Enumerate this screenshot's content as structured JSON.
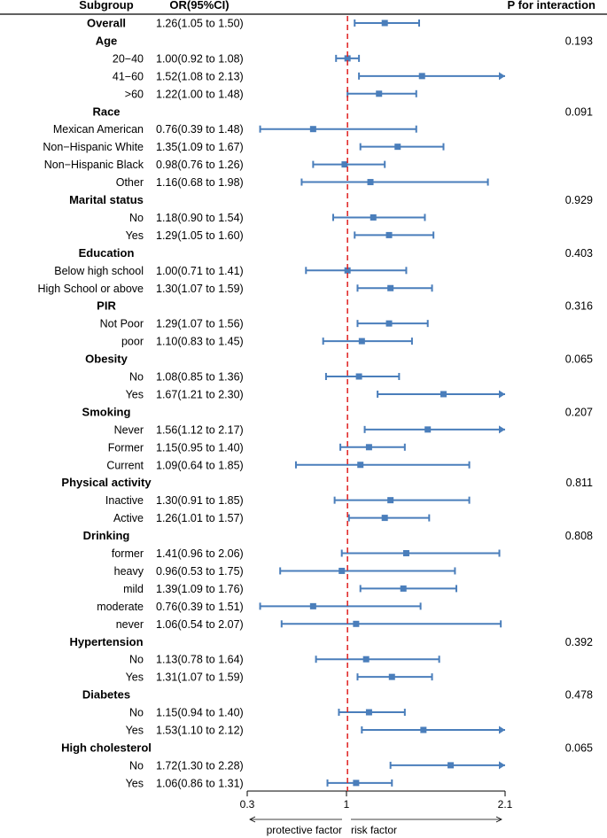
{
  "chart_data": {
    "type": "forest",
    "headers": {
      "subgroup": "Subgroup",
      "or": "OR(95%CI)",
      "p": "P for interaction"
    },
    "x_axis": {
      "min": 0.3,
      "max": 2.1,
      "ref": 1,
      "ticks": [
        "0.3",
        "1",
        "2.1"
      ]
    },
    "annotations": {
      "left": "protective factor",
      "right": "risk factor"
    },
    "colors": {
      "estimate": "#4a7ebb",
      "reference": "#e02020",
      "text": "#000000"
    },
    "rows": [
      {
        "label": "Overall",
        "header": true,
        "or_text": "1.26(1.05 to 1.50)",
        "est": 1.26,
        "lo": 1.05,
        "hi": 1.5,
        "p": ""
      },
      {
        "label": "Age",
        "header": true,
        "or_text": "",
        "p": "0.193"
      },
      {
        "label": "20−40",
        "header": false,
        "or_text": "1.00(0.92 to 1.08)",
        "est": 1.0,
        "lo": 0.92,
        "hi": 1.08,
        "p": ""
      },
      {
        "label": "41−60",
        "header": false,
        "or_text": "1.52(1.08 to 2.13)",
        "est": 1.52,
        "lo": 1.08,
        "hi": 2.13,
        "p": ""
      },
      {
        "label": ">60",
        "header": false,
        "or_text": "1.22(1.00 to 1.48)",
        "est": 1.22,
        "lo": 1.0,
        "hi": 1.48,
        "p": ""
      },
      {
        "label": "Race",
        "header": true,
        "or_text": "",
        "p": "0.091"
      },
      {
        "label": "Mexican American",
        "header": false,
        "or_text": "0.76(0.39 to 1.48)",
        "est": 0.76,
        "lo": 0.39,
        "hi": 1.48,
        "p": ""
      },
      {
        "label": "Non−Hispanic White",
        "header": false,
        "or_text": "1.35(1.09 to 1.67)",
        "est": 1.35,
        "lo": 1.09,
        "hi": 1.67,
        "p": ""
      },
      {
        "label": "Non−Hispanic Black",
        "header": false,
        "or_text": "0.98(0.76 to 1.26)",
        "est": 0.98,
        "lo": 0.76,
        "hi": 1.26,
        "p": ""
      },
      {
        "label": "Other",
        "header": false,
        "or_text": "1.16(0.68 to 1.98)",
        "est": 1.16,
        "lo": 0.68,
        "hi": 1.98,
        "p": ""
      },
      {
        "label": "Marital status",
        "header": true,
        "or_text": "",
        "p": "0.929"
      },
      {
        "label": "No",
        "header": false,
        "or_text": "1.18(0.90 to 1.54)",
        "est": 1.18,
        "lo": 0.9,
        "hi": 1.54,
        "p": ""
      },
      {
        "label": "Yes",
        "header": false,
        "or_text": "1.29(1.05 to 1.60)",
        "est": 1.29,
        "lo": 1.05,
        "hi": 1.6,
        "p": ""
      },
      {
        "label": "Education",
        "header": true,
        "or_text": "",
        "p": "0.403"
      },
      {
        "label": "Below high school",
        "header": false,
        "or_text": "1.00(0.71 to 1.41)",
        "est": 1.0,
        "lo": 0.71,
        "hi": 1.41,
        "p": ""
      },
      {
        "label": "High School or above",
        "header": false,
        "or_text": "1.30(1.07 to 1.59)",
        "est": 1.3,
        "lo": 1.07,
        "hi": 1.59,
        "p": ""
      },
      {
        "label": "PIR",
        "header": true,
        "or_text": "",
        "p": "0.316"
      },
      {
        "label": "Not Poor",
        "header": false,
        "or_text": "1.29(1.07 to 1.56)",
        "est": 1.29,
        "lo": 1.07,
        "hi": 1.56,
        "p": ""
      },
      {
        "label": "poor",
        "header": false,
        "or_text": "1.10(0.83 to 1.45)",
        "est": 1.1,
        "lo": 0.83,
        "hi": 1.45,
        "p": ""
      },
      {
        "label": "Obesity",
        "header": true,
        "or_text": "",
        "p": "0.065"
      },
      {
        "label": "No",
        "header": false,
        "or_text": "1.08(0.85 to 1.36)",
        "est": 1.08,
        "lo": 0.85,
        "hi": 1.36,
        "p": ""
      },
      {
        "label": "Yes",
        "header": false,
        "or_text": "1.67(1.21 to 2.30)",
        "est": 1.67,
        "lo": 1.21,
        "hi": 2.3,
        "p": ""
      },
      {
        "label": "Smoking",
        "header": true,
        "or_text": "",
        "p": "0.207"
      },
      {
        "label": "Never",
        "header": false,
        "or_text": "1.56(1.12 to 2.17)",
        "est": 1.56,
        "lo": 1.12,
        "hi": 2.17,
        "p": ""
      },
      {
        "label": "Former",
        "header": false,
        "or_text": "1.15(0.95 to 1.40)",
        "est": 1.15,
        "lo": 0.95,
        "hi": 1.4,
        "p": ""
      },
      {
        "label": "Current",
        "header": false,
        "or_text": "1.09(0.64 to 1.85)",
        "est": 1.09,
        "lo": 0.64,
        "hi": 1.85,
        "p": ""
      },
      {
        "label": "Physical activity",
        "header": true,
        "or_text": "",
        "p": "0.811"
      },
      {
        "label": "Inactive",
        "header": false,
        "or_text": "1.30(0.91 to 1.85)",
        "est": 1.3,
        "lo": 0.91,
        "hi": 1.85,
        "p": ""
      },
      {
        "label": "Active",
        "header": false,
        "or_text": "1.26(1.01 to 1.57)",
        "est": 1.26,
        "lo": 1.01,
        "hi": 1.57,
        "p": ""
      },
      {
        "label": "Drinking",
        "header": true,
        "or_text": "",
        "p": "0.808"
      },
      {
        "label": "former",
        "header": false,
        "or_text": "1.41(0.96 to 2.06)",
        "est": 1.41,
        "lo": 0.96,
        "hi": 2.06,
        "p": ""
      },
      {
        "label": "heavy",
        "header": false,
        "or_text": "0.96(0.53 to 1.75)",
        "est": 0.96,
        "lo": 0.53,
        "hi": 1.75,
        "p": ""
      },
      {
        "label": "mild",
        "header": false,
        "or_text": "1.39(1.09 to 1.76)",
        "est": 1.39,
        "lo": 1.09,
        "hi": 1.76,
        "p": ""
      },
      {
        "label": "moderate",
        "header": false,
        "or_text": "0.76(0.39 to 1.51)",
        "est": 0.76,
        "lo": 0.39,
        "hi": 1.51,
        "p": ""
      },
      {
        "label": "never",
        "header": false,
        "or_text": "1.06(0.54 to 2.07)",
        "est": 1.06,
        "lo": 0.54,
        "hi": 2.07,
        "p": ""
      },
      {
        "label": "Hypertension",
        "header": true,
        "or_text": "",
        "p": "0.392"
      },
      {
        "label": "No",
        "header": false,
        "or_text": "1.13(0.78 to 1.64)",
        "est": 1.13,
        "lo": 0.78,
        "hi": 1.64,
        "p": ""
      },
      {
        "label": "Yes",
        "header": false,
        "or_text": "1.31(1.07 to 1.59)",
        "est": 1.31,
        "lo": 1.07,
        "hi": 1.59,
        "p": ""
      },
      {
        "label": "Diabetes",
        "header": true,
        "or_text": "",
        "p": "0.478"
      },
      {
        "label": "No",
        "header": false,
        "or_text": "1.15(0.94 to 1.40)",
        "est": 1.15,
        "lo": 0.94,
        "hi": 1.4,
        "p": ""
      },
      {
        "label": "Yes",
        "header": false,
        "or_text": "1.53(1.10 to 2.12)",
        "est": 1.53,
        "lo": 1.1,
        "hi": 2.12,
        "p": ""
      },
      {
        "label": "High cholesterol",
        "header": true,
        "or_text": "",
        "p": "0.065"
      },
      {
        "label": "No",
        "header": false,
        "or_text": "1.72(1.30 to 2.28)",
        "est": 1.72,
        "lo": 1.3,
        "hi": 2.28,
        "p": ""
      },
      {
        "label": "Yes",
        "header": false,
        "or_text": "1.06(0.86 to 1.31)",
        "est": 1.06,
        "lo": 0.86,
        "hi": 1.31,
        "p": ""
      }
    ]
  }
}
